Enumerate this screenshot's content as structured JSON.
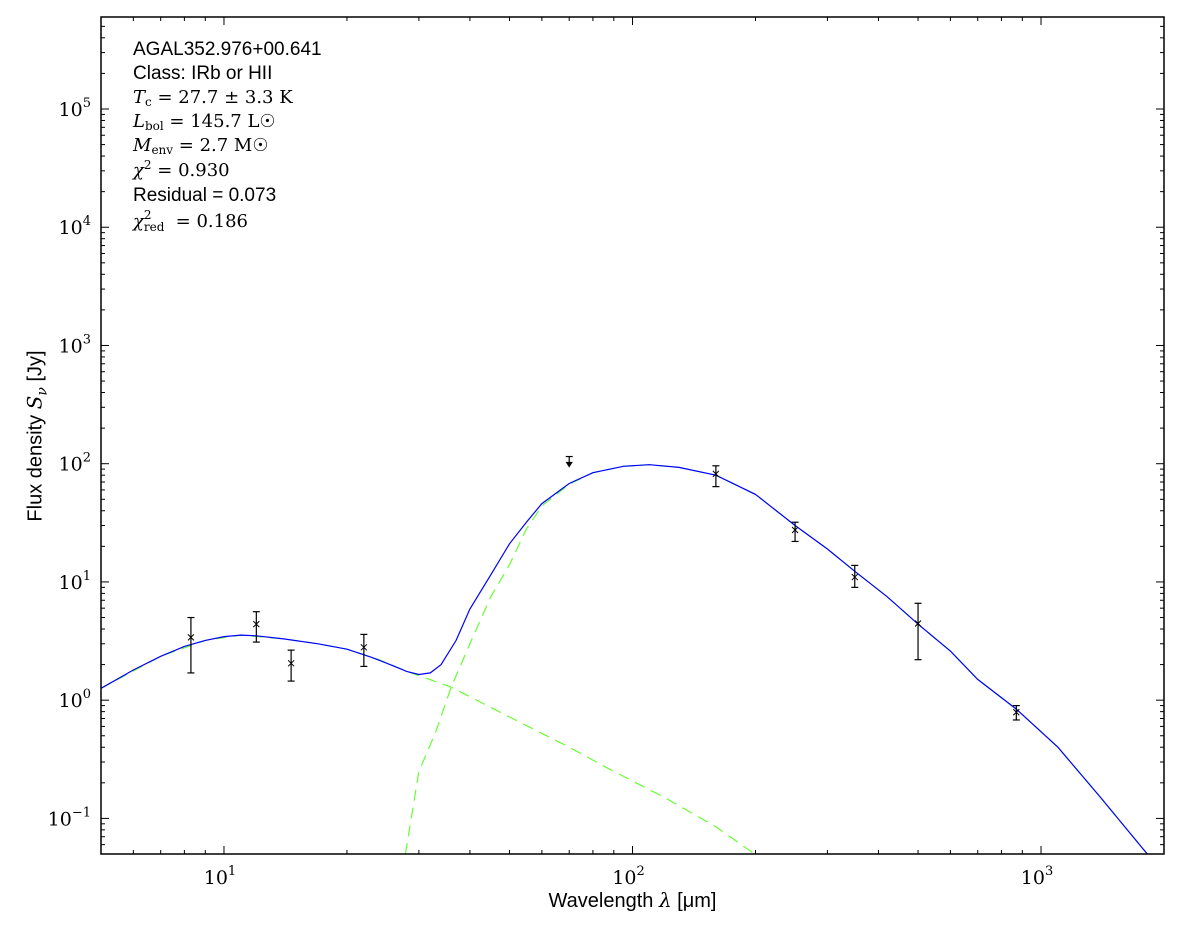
{
  "chart_data": {
    "type": "scatter",
    "title": "",
    "xlabel": "Wavelength λ [μm]",
    "xlabel_parts": {
      "text": "Wavelength ",
      "sym": "λ",
      "unit": " [μm]"
    },
    "ylabel": "Flux density Sν [Jy]",
    "ylabel_parts": {
      "text": "Flux density ",
      "sym": "S",
      "sub": "ν",
      "unit": " [Jy]"
    },
    "xscale": "log",
    "yscale": "log",
    "xlim": [
      5,
      2000
    ],
    "ylim": [
      0.05,
      600000
    ],
    "x_ticks": [
      {
        "value": 10,
        "base": "10",
        "exp": "1"
      },
      {
        "value": 100,
        "base": "10",
        "exp": "2"
      },
      {
        "value": 1000,
        "base": "10",
        "exp": "3"
      }
    ],
    "y_ticks": [
      {
        "value": 0.1,
        "base": "10",
        "exp": "−1"
      },
      {
        "value": 1,
        "base": "10",
        "exp": "0"
      },
      {
        "value": 10,
        "base": "10",
        "exp": "1"
      },
      {
        "value": 100,
        "base": "10",
        "exp": "2"
      },
      {
        "value": 1000,
        "base": "10",
        "exp": "3"
      },
      {
        "value": 10000,
        "base": "10",
        "exp": "4"
      },
      {
        "value": 100000,
        "base": "10",
        "exp": "5"
      }
    ],
    "grid": false,
    "colors": {
      "total_model": "#0000ff",
      "components": "#66ff33",
      "points": "#000000"
    },
    "points": [
      {
        "x": 8.3,
        "y": 3.4,
        "lo": 1.7,
        "hi": 5.0
      },
      {
        "x": 12,
        "y": 4.4,
        "lo": 3.1,
        "hi": 5.6
      },
      {
        "x": 14.6,
        "y": 2.05,
        "lo": 1.45,
        "hi": 2.65
      },
      {
        "x": 22,
        "y": 2.8,
        "lo": 1.93,
        "hi": 3.6
      },
      {
        "x": 160,
        "y": 82,
        "lo": 64,
        "hi": 96
      },
      {
        "x": 250,
        "y": 27.5,
        "lo": 22,
        "hi": 32
      },
      {
        "x": 350,
        "y": 11,
        "lo": 9,
        "hi": 13.8
      },
      {
        "x": 500,
        "y": 4.45,
        "lo": 2.2,
        "hi": 6.6
      },
      {
        "x": 870,
        "y": 0.79,
        "lo": 0.68,
        "hi": 0.9
      }
    ],
    "upper_limits": [
      {
        "x": 70,
        "y": 115
      }
    ],
    "total_model": [
      [
        5,
        1.26
      ],
      [
        6,
        1.8
      ],
      [
        7,
        2.35
      ],
      [
        8,
        2.85
      ],
      [
        9,
        3.2
      ],
      [
        10,
        3.45
      ],
      [
        11,
        3.55
      ],
      [
        12,
        3.5
      ],
      [
        14,
        3.3
      ],
      [
        17,
        3.0
      ],
      [
        20,
        2.7
      ],
      [
        23,
        2.3
      ],
      [
        26,
        1.95
      ],
      [
        28,
        1.75
      ],
      [
        30,
        1.65
      ],
      [
        32,
        1.7
      ],
      [
        34,
        2.0
      ],
      [
        37,
        3.2
      ],
      [
        40,
        5.9
      ],
      [
        45,
        11.5
      ],
      [
        50,
        21
      ],
      [
        55,
        32
      ],
      [
        60,
        46
      ],
      [
        70,
        68
      ],
      [
        80,
        84
      ],
      [
        95,
        95
      ],
      [
        110,
        98
      ],
      [
        130,
        93
      ],
      [
        160,
        80
      ],
      [
        200,
        55
      ],
      [
        250,
        30
      ],
      [
        300,
        19
      ],
      [
        350,
        12.3
      ],
      [
        420,
        7.5
      ],
      [
        500,
        4.4
      ],
      [
        600,
        2.6
      ],
      [
        700,
        1.5
      ],
      [
        870,
        0.84
      ],
      [
        1100,
        0.4
      ],
      [
        1400,
        0.15
      ],
      [
        1820,
        0.05
      ]
    ],
    "warm_component": [
      [
        5,
        1.26
      ],
      [
        7,
        2.35
      ],
      [
        9,
        3.2
      ],
      [
        11,
        3.55
      ],
      [
        14,
        3.3
      ],
      [
        17,
        3.0
      ],
      [
        20,
        2.7
      ],
      [
        24,
        2.2
      ],
      [
        28,
        1.75
      ],
      [
        36,
        1.29
      ],
      [
        50,
        0.72
      ],
      [
        70,
        0.4
      ],
      [
        88,
        0.26
      ],
      [
        120,
        0.15
      ],
      [
        160,
        0.085
      ],
      [
        199,
        0.05
      ]
    ],
    "cold_component": [
      [
        27.8,
        0.05
      ],
      [
        30,
        0.25
      ],
      [
        33,
        0.54
      ],
      [
        36,
        1.29
      ],
      [
        40,
        3.0
      ],
      [
        45,
        7.5
      ],
      [
        50,
        14
      ],
      [
        55,
        28
      ],
      [
        60,
        44
      ],
      [
        70,
        67
      ],
      [
        80,
        84
      ],
      [
        95,
        95
      ],
      [
        110,
        98
      ],
      [
        130,
        93
      ],
      [
        160,
        80
      ],
      [
        200,
        55
      ],
      [
        250,
        30
      ],
      [
        300,
        19
      ],
      [
        350,
        12.3
      ],
      [
        420,
        7.5
      ],
      [
        500,
        4.4
      ],
      [
        600,
        2.6
      ],
      [
        700,
        1.5
      ],
      [
        870,
        0.84
      ],
      [
        1100,
        0.4
      ],
      [
        1400,
        0.15
      ],
      [
        1820,
        0.05
      ]
    ]
  },
  "annotations": {
    "source": "AGAL352.976+00.641",
    "class": "Class: IRb or HII",
    "tc": {
      "sym": "T",
      "sub": "c",
      "rest": " = 27.7 ± 3.3 K"
    },
    "lbol": {
      "sym": "L",
      "sub": "bol",
      "rest": " = 145.7 L☉"
    },
    "menv": {
      "sym": "M",
      "sub": "env",
      "rest": " = 2.7 M☉"
    },
    "chi2": {
      "sym": "χ",
      "sup": "2",
      "rest": " = 0.930"
    },
    "residual": "Residual = 0.073",
    "chi2red": {
      "sym": "χ",
      "sup": "2",
      "sub": "red",
      "rest": " = 0.186"
    }
  }
}
